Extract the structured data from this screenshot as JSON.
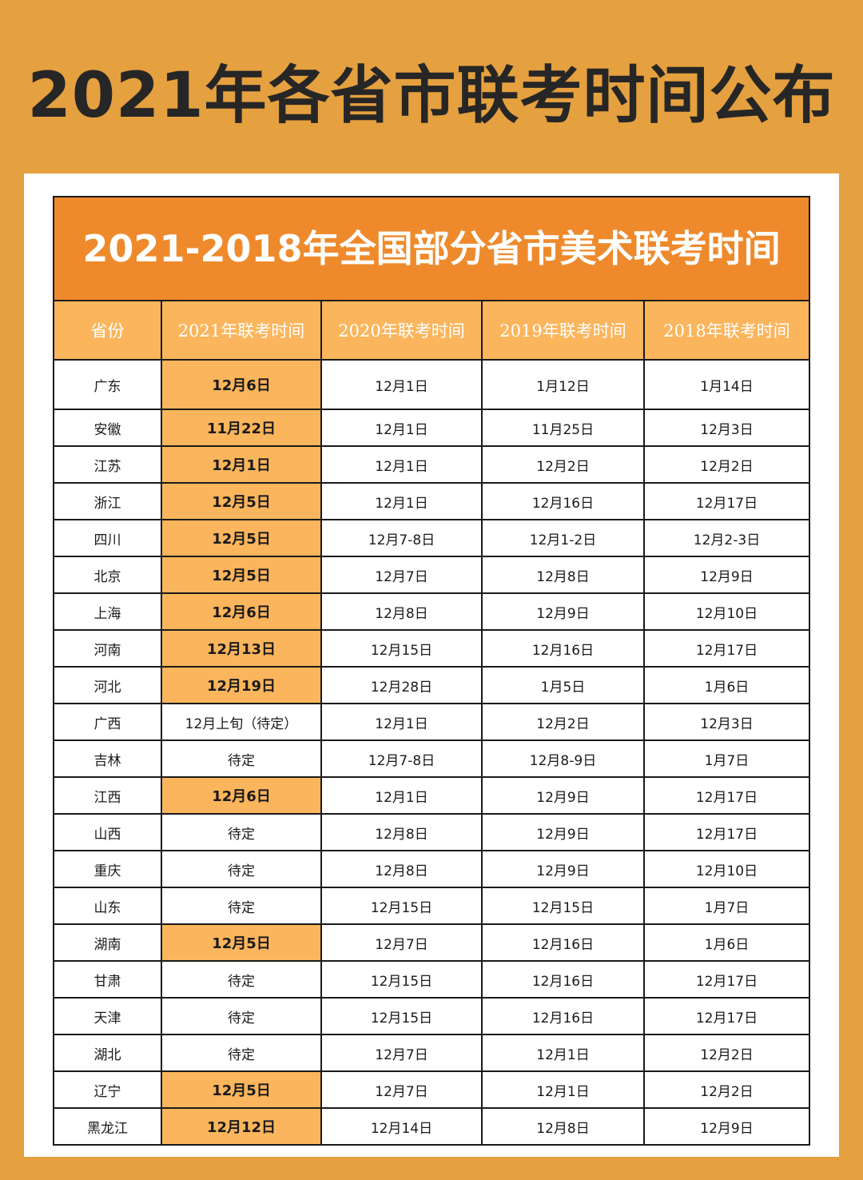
{
  "page": {
    "title": "2021年各省市联考时间公布"
  },
  "table": {
    "title": "2021-2018年全国部分省市美术联考时间",
    "headers": [
      "省份",
      "2021年联考时间",
      "2020年联考时间",
      "2019年联考时间",
      "2018年联考时间"
    ],
    "highlight_color": "#fbb55c",
    "header_color": "#fbb55c",
    "title_color": "#ee8a2c",
    "rows": [
      {
        "cells": [
          "广东",
          "12月6日",
          "12月1日",
          "1月12日",
          "1月14日"
        ],
        "highlight_2021": true
      },
      {
        "cells": [
          "安徽",
          "11月22日",
          "12月1日",
          "11月25日",
          "12月3日"
        ],
        "highlight_2021": true
      },
      {
        "cells": [
          "江苏",
          "12月1日",
          "12月1日",
          "12月2日",
          "12月2日"
        ],
        "highlight_2021": true
      },
      {
        "cells": [
          "浙江",
          "12月5日",
          "12月1日",
          "12月16日",
          "12月17日"
        ],
        "highlight_2021": true
      },
      {
        "cells": [
          "四川",
          "12月5日",
          "12月7-8日",
          "12月1-2日",
          "12月2-3日"
        ],
        "highlight_2021": true
      },
      {
        "cells": [
          "北京",
          "12月5日",
          "12月7日",
          "12月8日",
          "12月9日"
        ],
        "highlight_2021": true
      },
      {
        "cells": [
          "上海",
          "12月6日",
          "12月8日",
          "12月9日",
          "12月10日"
        ],
        "highlight_2021": true
      },
      {
        "cells": [
          "河南",
          "12月13日",
          "12月15日",
          "12月16日",
          "12月17日"
        ],
        "highlight_2021": true
      },
      {
        "cells": [
          "河北",
          "12月19日",
          "12月28日",
          "1月5日",
          "1月6日"
        ],
        "highlight_2021": true
      },
      {
        "cells": [
          "广西",
          "12月上旬（待定）",
          "12月1日",
          "12月2日",
          "12月3日"
        ],
        "highlight_2021": false
      },
      {
        "cells": [
          "吉林",
          "待定",
          "12月7-8日",
          "12月8-9日",
          "1月7日"
        ],
        "highlight_2021": false
      },
      {
        "cells": [
          "江西",
          "12月6日",
          "12月1日",
          "12月9日",
          "12月17日"
        ],
        "highlight_2021": true
      },
      {
        "cells": [
          "山西",
          "待定",
          "12月8日",
          "12月9日",
          "12月17日"
        ],
        "highlight_2021": false
      },
      {
        "cells": [
          "重庆",
          "待定",
          "12月8日",
          "12月9日",
          "12月10日"
        ],
        "highlight_2021": false
      },
      {
        "cells": [
          "山东",
          "待定",
          "12月15日",
          "12月15日",
          "1月7日"
        ],
        "highlight_2021": false
      },
      {
        "cells": [
          "湖南",
          "12月5日",
          "12月7日",
          "12月16日",
          "1月6日"
        ],
        "highlight_2021": true
      },
      {
        "cells": [
          "甘肃",
          "待定",
          "12月15日",
          "12月16日",
          "12月17日"
        ],
        "highlight_2021": false
      },
      {
        "cells": [
          "天津",
          "待定",
          "12月15日",
          "12月16日",
          "12月17日"
        ],
        "highlight_2021": false
      },
      {
        "cells": [
          "湖北",
          "待定",
          "12月7日",
          "12月1日",
          "12月2日"
        ],
        "highlight_2021": false
      },
      {
        "cells": [
          "辽宁",
          "12月5日",
          "12月7日",
          "12月1日",
          "12月2日"
        ],
        "highlight_2021": true
      },
      {
        "cells": [
          "黑龙江",
          "12月12日",
          "12月14日",
          "12月8日",
          "12月9日"
        ],
        "highlight_2021": true
      }
    ]
  }
}
